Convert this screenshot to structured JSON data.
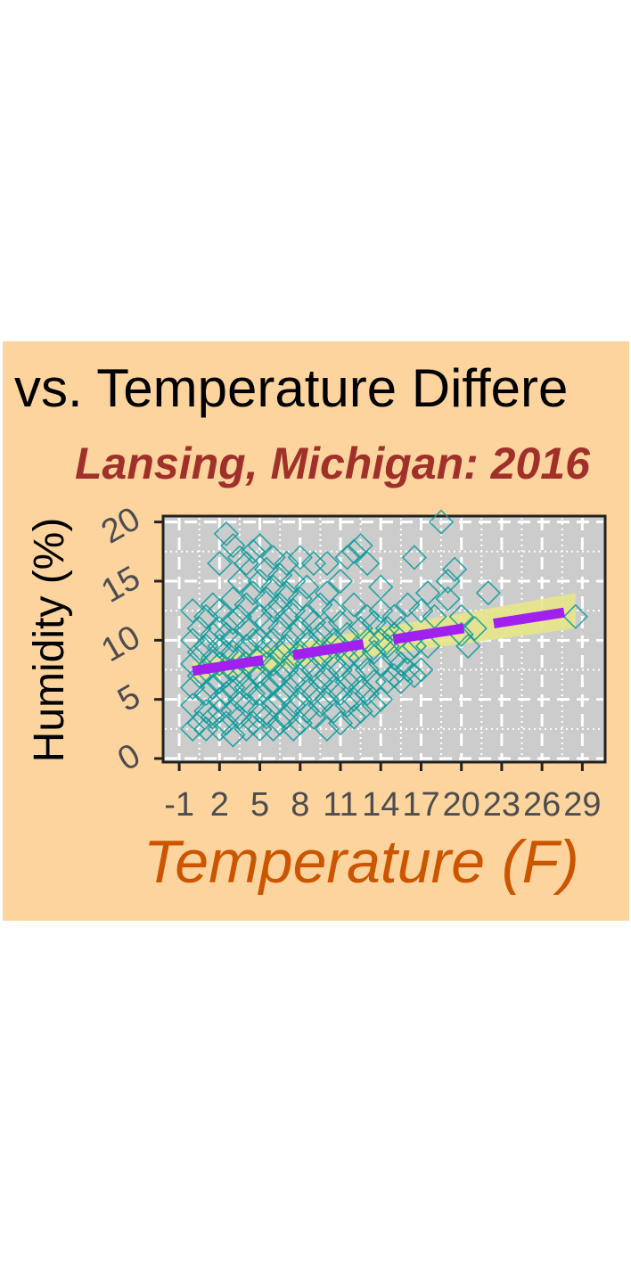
{
  "chart_data": {
    "type": "scatter",
    "title": "vs. Temperature Differe",
    "subtitle": "Lansing, Michigan: 2016",
    "xlabel": "Temperature (F)",
    "ylabel": "Humidity (%)",
    "x_ticks": [
      "-1",
      "2",
      "5",
      "8",
      "11",
      "14",
      "17",
      "20",
      "23",
      "26",
      "29"
    ],
    "x_tick_values": [
      -1,
      2,
      5,
      8,
      11,
      14,
      17,
      20,
      23,
      26,
      29
    ],
    "y_ticks": [
      "0",
      "5",
      "10",
      "15",
      "20"
    ],
    "y_tick_values": [
      0,
      5,
      10,
      15,
      20
    ],
    "xlim": [
      -2.2,
      30.7
    ],
    "ylim": [
      -0.3,
      20.5
    ],
    "grid": true,
    "legend": "none",
    "colors": {
      "panel_bg": "#fdd49e",
      "plot_bg": "#cccccc",
      "points": "#0e9a9a",
      "trend_line": "#a020f0",
      "confidence_band": "#e5e58a",
      "title": "#000000",
      "subtitle": "#a0302a",
      "xlabel": "#cc5500",
      "ylabel": "#000000",
      "tick_labels": "#4d4d4d"
    },
    "trend": {
      "x": [
        0,
        28.5
      ],
      "y": [
        7.4,
        12.5
      ],
      "ci_low": [
        6.6,
        11.0
      ],
      "ci_high": [
        8.2,
        14.0
      ]
    },
    "points": [
      [
        0,
        2.5
      ],
      [
        0,
        4.5
      ],
      [
        0,
        6
      ],
      [
        0,
        8
      ],
      [
        0,
        10
      ],
      [
        0,
        12.5
      ],
      [
        0.5,
        3
      ],
      [
        0.5,
        7
      ],
      [
        0.5,
        9
      ],
      [
        0.5,
        11
      ],
      [
        1,
        2.5
      ],
      [
        1,
        4
      ],
      [
        1,
        5.5
      ],
      [
        1,
        7.5
      ],
      [
        1,
        9.5
      ],
      [
        1,
        12
      ],
      [
        1.5,
        3.5
      ],
      [
        1.5,
        6
      ],
      [
        1.5,
        8.5
      ],
      [
        1.5,
        10.5
      ],
      [
        1.5,
        13
      ],
      [
        2,
        2.5
      ],
      [
        2,
        4
      ],
      [
        2,
        5
      ],
      [
        2,
        6.5
      ],
      [
        2,
        8
      ],
      [
        2,
        9.5
      ],
      [
        2,
        11
      ],
      [
        2,
        12.5
      ],
      [
        2,
        16.5
      ],
      [
        2.5,
        3
      ],
      [
        2.5,
        5.5
      ],
      [
        2.5,
        7
      ],
      [
        2.5,
        9
      ],
      [
        2.5,
        10.5
      ],
      [
        2.5,
        19
      ],
      [
        3,
        2
      ],
      [
        3,
        4
      ],
      [
        3,
        6
      ],
      [
        3,
        7.5
      ],
      [
        3,
        9
      ],
      [
        3,
        10
      ],
      [
        3,
        11.5
      ],
      [
        3,
        13.5
      ],
      [
        3,
        18
      ],
      [
        3.5,
        3.5
      ],
      [
        3.5,
        5
      ],
      [
        3.5,
        7
      ],
      [
        3.5,
        8.5
      ],
      [
        3.5,
        12
      ],
      [
        3.5,
        15
      ],
      [
        3.5,
        17
      ],
      [
        4,
        2.5
      ],
      [
        4,
        4.5
      ],
      [
        4,
        6
      ],
      [
        4,
        8
      ],
      [
        4,
        9.5
      ],
      [
        4,
        11
      ],
      [
        4,
        13
      ],
      [
        4,
        16.5
      ],
      [
        4.5,
        3
      ],
      [
        4.5,
        5.5
      ],
      [
        4.5,
        7.5
      ],
      [
        4.5,
        10
      ],
      [
        4.5,
        14
      ],
      [
        4.5,
        17.5
      ],
      [
        5,
        2.5
      ],
      [
        5,
        4
      ],
      [
        5,
        5.5
      ],
      [
        5,
        7
      ],
      [
        5,
        8.5
      ],
      [
        5,
        10
      ],
      [
        5,
        12
      ],
      [
        5,
        15
      ],
      [
        5,
        18
      ],
      [
        5.5,
        3.5
      ],
      [
        5.5,
        6
      ],
      [
        5.5,
        8
      ],
      [
        5.5,
        9.5
      ],
      [
        5.5,
        11.5
      ],
      [
        5.5,
        13.5
      ],
      [
        5.5,
        16
      ],
      [
        6,
        2.5
      ],
      [
        6,
        4.5
      ],
      [
        6,
        6.5
      ],
      [
        6,
        8
      ],
      [
        6,
        10
      ],
      [
        6,
        12.5
      ],
      [
        6,
        14.5
      ],
      [
        6,
        17
      ],
      [
        6.5,
        3
      ],
      [
        6.5,
        5
      ],
      [
        6.5,
        7
      ],
      [
        6.5,
        9
      ],
      [
        6.5,
        11
      ],
      [
        6.5,
        13
      ],
      [
        6.5,
        15.5
      ],
      [
        7,
        3.5
      ],
      [
        7,
        5.5
      ],
      [
        7,
        7.5
      ],
      [
        7,
        9.5
      ],
      [
        7,
        12
      ],
      [
        7,
        14
      ],
      [
        7,
        16.5
      ],
      [
        7.5,
        2.5
      ],
      [
        7.5,
        4.5
      ],
      [
        7.5,
        6.5
      ],
      [
        7.5,
        8.5
      ],
      [
        7.5,
        10.5
      ],
      [
        7.5,
        12.5
      ],
      [
        7.5,
        15
      ],
      [
        8,
        3
      ],
      [
        8,
        5
      ],
      [
        8,
        7
      ],
      [
        8,
        9
      ],
      [
        8,
        11
      ],
      [
        8,
        13.5
      ],
      [
        8,
        17
      ],
      [
        8.5,
        4
      ],
      [
        8.5,
        6
      ],
      [
        8.5,
        8
      ],
      [
        8.5,
        10
      ],
      [
        8.5,
        12
      ],
      [
        8.5,
        14.5
      ],
      [
        9,
        3.5
      ],
      [
        9,
        5.5
      ],
      [
        9,
        7.5
      ],
      [
        9,
        9.5
      ],
      [
        9,
        11.5
      ],
      [
        9,
        16.5
      ],
      [
        9.5,
        4.5
      ],
      [
        9.5,
        6.5
      ],
      [
        9.5,
        8.5
      ],
      [
        9.5,
        10.5
      ],
      [
        9.5,
        13
      ],
      [
        10,
        2.5
      ],
      [
        10,
        5
      ],
      [
        10,
        7
      ],
      [
        10,
        9
      ],
      [
        10,
        11
      ],
      [
        10,
        14
      ],
      [
        10,
        16.5
      ],
      [
        10.5,
        4
      ],
      [
        10.5,
        6
      ],
      [
        10.5,
        8
      ],
      [
        10.5,
        10
      ],
      [
        10.5,
        12.5
      ],
      [
        11,
        3
      ],
      [
        11,
        5.5
      ],
      [
        11,
        7.5
      ],
      [
        11,
        9.5
      ],
      [
        11,
        11.5
      ],
      [
        11,
        15
      ],
      [
        11.5,
        4.5
      ],
      [
        11.5,
        6.5
      ],
      [
        11.5,
        8.5
      ],
      [
        11.5,
        10.5
      ],
      [
        11.5,
        17
      ],
      [
        12,
        3.5
      ],
      [
        12,
        5
      ],
      [
        12,
        7
      ],
      [
        12,
        9
      ],
      [
        12,
        13
      ],
      [
        12,
        17.5
      ],
      [
        12.5,
        4
      ],
      [
        12.5,
        6
      ],
      [
        12.5,
        8.5
      ],
      [
        12.5,
        11
      ],
      [
        12.5,
        18
      ],
      [
        13,
        5.5
      ],
      [
        13,
        7.5
      ],
      [
        13,
        10
      ],
      [
        13,
        12
      ],
      [
        13,
        16.5
      ],
      [
        13.5,
        4.5
      ],
      [
        13.5,
        6.5
      ],
      [
        13.5,
        9
      ],
      [
        13.5,
        11.5
      ],
      [
        14,
        5
      ],
      [
        14,
        8
      ],
      [
        14,
        10
      ],
      [
        14,
        12.5
      ],
      [
        14,
        14.5
      ],
      [
        14.5,
        6.5
      ],
      [
        14.5,
        9.5
      ],
      [
        14.5,
        11
      ],
      [
        15,
        7
      ],
      [
        15,
        8.5
      ],
      [
        15,
        10.5
      ],
      [
        15,
        12
      ],
      [
        15.5,
        6.5
      ],
      [
        15.5,
        8
      ],
      [
        15.5,
        11
      ],
      [
        16,
        7.5
      ],
      [
        16,
        9
      ],
      [
        16,
        13
      ],
      [
        16.5,
        7
      ],
      [
        16.5,
        9.5
      ],
      [
        16.5,
        17
      ],
      [
        17,
        7.5
      ],
      [
        17,
        12.5
      ],
      [
        17.5,
        9.5
      ],
      [
        17.5,
        14
      ],
      [
        18,
        12
      ],
      [
        18.5,
        20
      ],
      [
        19,
        13.5
      ],
      [
        19,
        15
      ],
      [
        19.5,
        16
      ],
      [
        20,
        12
      ],
      [
        20,
        10.5
      ],
      [
        20.5,
        9.5
      ],
      [
        21,
        11
      ],
      [
        22,
        14
      ],
      [
        28.5,
        12
      ]
    ]
  }
}
